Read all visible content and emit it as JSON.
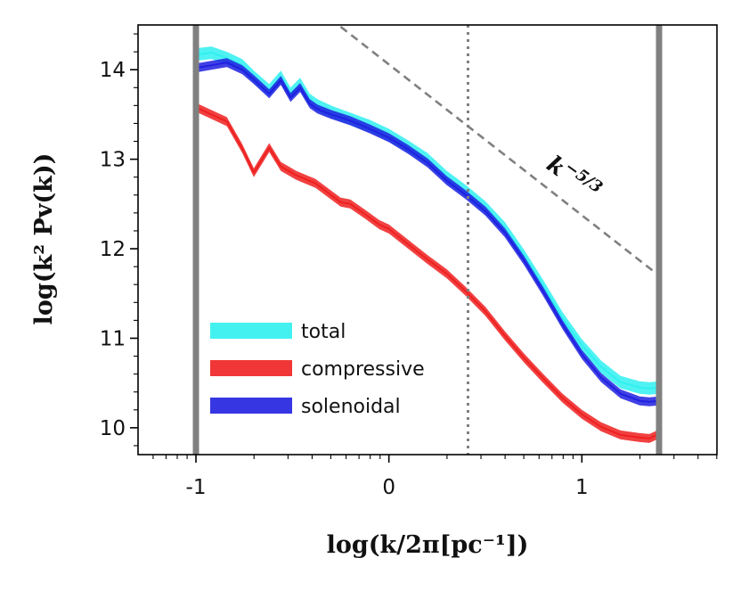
{
  "chart_data": {
    "type": "line",
    "title": "",
    "xlabel": "log(k/2π[pc⁻¹])",
    "ylabel": "log(k² Pv(k))",
    "xlim": [
      -1.3,
      1.7
    ],
    "ylim": [
      9.7,
      14.5
    ],
    "xticks": [
      -1,
      0,
      1
    ],
    "xtick_labels": [
      "-1",
      "0",
      "1"
    ],
    "yticks": [
      10,
      11,
      12,
      13,
      14
    ],
    "ytick_labels": [
      "10",
      "11",
      "12",
      "13",
      "14"
    ],
    "legend_position": "lower-left",
    "vertical_lines": [
      {
        "name": "lower-bound-line",
        "x": -1.0,
        "style": "solid-thick",
        "color": "#808080"
      },
      {
        "name": "upper-bound-line",
        "x": 1.4,
        "style": "solid-thick",
        "color": "#808080"
      },
      {
        "name": "scale-marker-line",
        "x": 0.41,
        "style": "dotted",
        "color": "#808080"
      }
    ],
    "reference_line": {
      "label": "k^{-5/3}",
      "label_base": "k",
      "label_exp": "−5/3",
      "color": "#808080",
      "x": [
        -0.25,
        1.4
      ],
      "y": [
        14.48,
        11.7
      ]
    },
    "series": [
      {
        "name": "total",
        "color": "#30f0f0",
        "band_width": 0.14,
        "x": [
          -1.0,
          -0.92,
          -0.84,
          -0.76,
          -0.7,
          -0.62,
          -0.56,
          -0.51,
          -0.46,
          -0.41,
          -0.37,
          -0.3,
          -0.2,
          -0.1,
          0.0,
          0.1,
          0.2,
          0.3,
          0.4,
          0.5,
          0.6,
          0.7,
          0.8,
          0.9,
          1.0,
          1.1,
          1.2,
          1.3,
          1.35,
          1.4
        ],
        "y": [
          14.17,
          14.19,
          14.13,
          14.05,
          13.92,
          13.77,
          13.92,
          13.73,
          13.84,
          13.66,
          13.6,
          13.53,
          13.45,
          13.37,
          13.27,
          13.14,
          13.0,
          12.8,
          12.64,
          12.46,
          12.23,
          11.92,
          11.58,
          11.22,
          10.92,
          10.68,
          10.51,
          10.45,
          10.44,
          10.45
        ]
      },
      {
        "name": "compressive",
        "color": "#ee2020",
        "band_width": 0.1,
        "x": [
          -1.0,
          -0.92,
          -0.84,
          -0.76,
          -0.7,
          -0.62,
          -0.56,
          -0.48,
          -0.38,
          -0.3,
          -0.25,
          -0.2,
          -0.12,
          -0.05,
          0.0,
          0.1,
          0.2,
          0.3,
          0.4,
          0.5,
          0.6,
          0.7,
          0.8,
          0.9,
          1.0,
          1.1,
          1.2,
          1.3,
          1.35,
          1.4
        ],
        "y": [
          13.58,
          13.5,
          13.42,
          13.12,
          12.85,
          13.13,
          12.92,
          12.82,
          12.73,
          12.6,
          12.52,
          12.5,
          12.38,
          12.27,
          12.22,
          12.05,
          11.88,
          11.72,
          11.52,
          11.3,
          11.03,
          10.78,
          10.55,
          10.33,
          10.15,
          10.01,
          9.92,
          9.89,
          9.88,
          9.93
        ]
      },
      {
        "name": "solenoidal",
        "color": "#2020e0",
        "band_width": 0.1,
        "x": [
          -1.0,
          -0.92,
          -0.84,
          -0.76,
          -0.7,
          -0.62,
          -0.56,
          -0.51,
          -0.46,
          -0.41,
          -0.37,
          -0.3,
          -0.2,
          -0.1,
          0.0,
          0.1,
          0.2,
          0.3,
          0.4,
          0.5,
          0.6,
          0.7,
          0.8,
          0.9,
          1.0,
          1.1,
          1.2,
          1.3,
          1.35,
          1.4
        ],
        "y": [
          14.02,
          14.05,
          14.08,
          14.0,
          13.89,
          13.73,
          13.88,
          13.69,
          13.8,
          13.62,
          13.56,
          13.5,
          13.43,
          13.34,
          13.24,
          13.11,
          12.96,
          12.76,
          12.6,
          12.42,
          12.18,
          11.87,
          11.52,
          11.15,
          10.82,
          10.56,
          10.38,
          10.3,
          10.29,
          10.3
        ]
      }
    ]
  }
}
